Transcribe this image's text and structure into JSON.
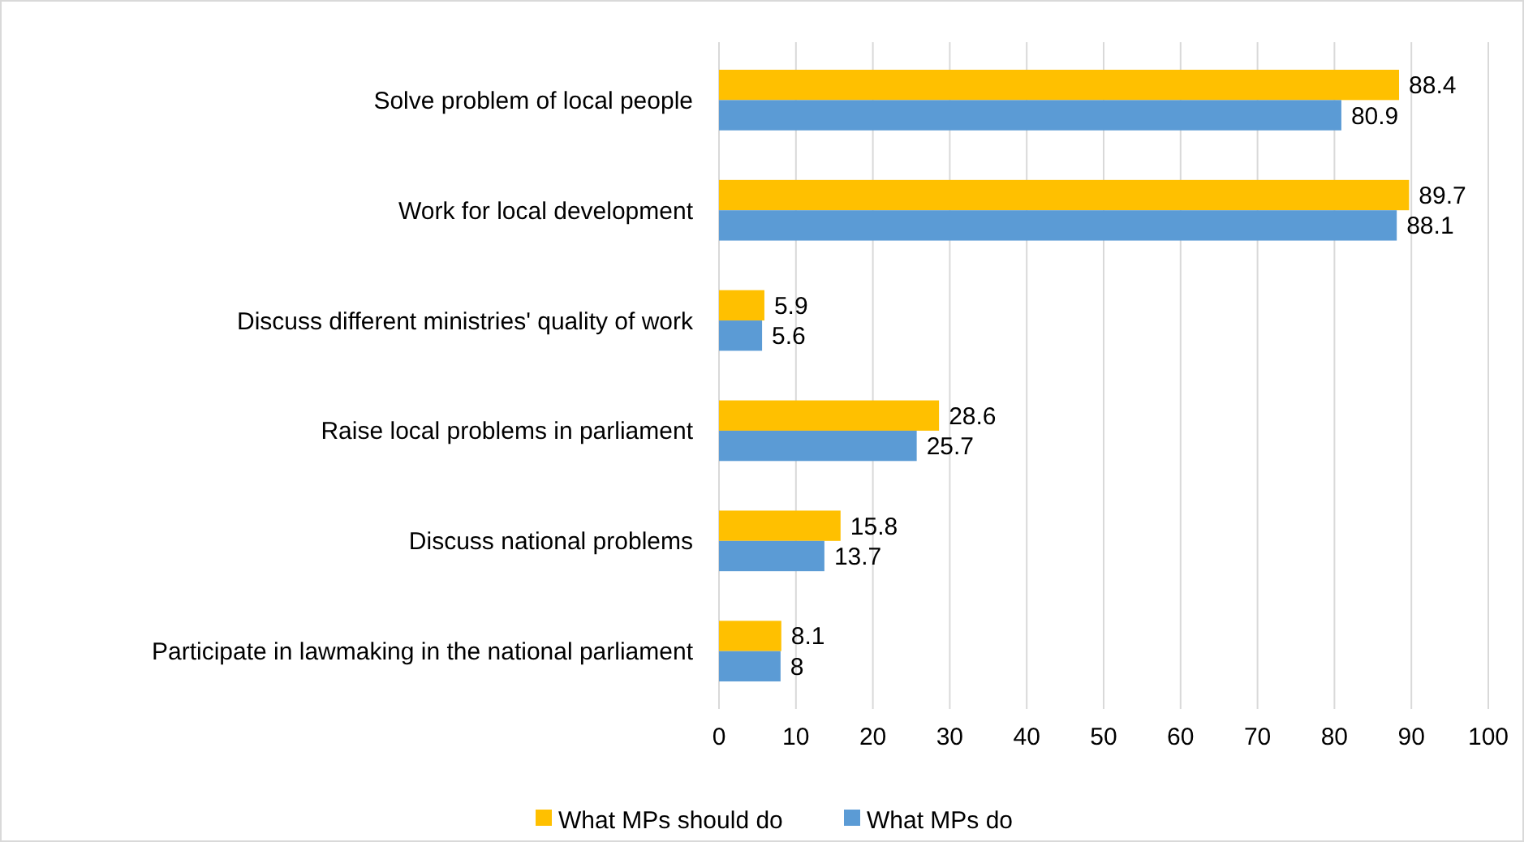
{
  "chart_data": {
    "type": "bar",
    "orientation": "horizontal",
    "categories": [
      "Solve problem of local people",
      "Work for local development",
      "Discuss different ministries' quality of work",
      "Raise local problems in parliament",
      "Discuss national problems",
      "Participate in lawmaking in the national parliament"
    ],
    "series": [
      {
        "name": "What MPs should do",
        "color": "#ffc000",
        "values": [
          88.4,
          89.7,
          5.9,
          28.6,
          15.8,
          8.1
        ]
      },
      {
        "name": "What MPs do",
        "color": "#5b9bd5",
        "values": [
          80.9,
          88.1,
          5.6,
          25.7,
          13.7,
          8
        ]
      }
    ],
    "xlim": [
      0,
      100
    ],
    "xticks": [
      0,
      10,
      20,
      30,
      40,
      50,
      60,
      70,
      80,
      90,
      100
    ],
    "grid": "x",
    "legend": "bottom",
    "data_labels": true
  }
}
